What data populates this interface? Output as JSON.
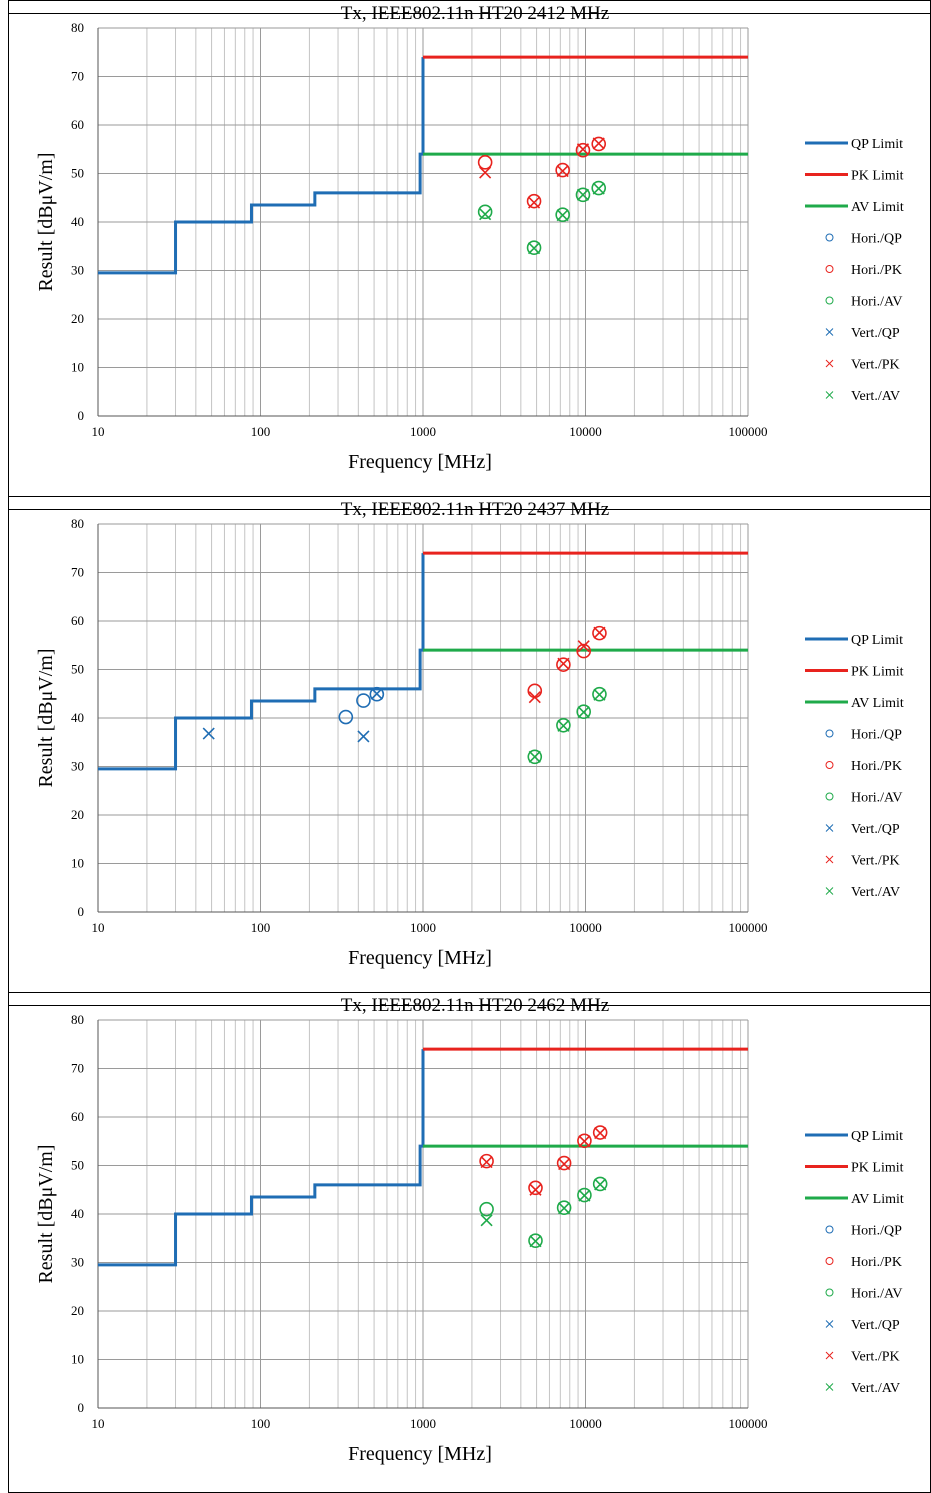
{
  "chart_data": [
    {
      "type": "line",
      "title": "Tx, IEEE802.11n HT20 2412 MHz",
      "xlabel": "Frequency [MHz]",
      "ylabel": "Result [dBμV/m]",
      "xscale": "log",
      "xlim": [
        10,
        100000
      ],
      "ylim": [
        0,
        80
      ],
      "xticks": [
        "10",
        "100",
        "1000",
        "10000",
        "100000"
      ],
      "yticks": [
        "0",
        "10",
        "20",
        "30",
        "40",
        "50",
        "60",
        "70",
        "80"
      ],
      "grid": true,
      "legend_position": "right",
      "series": [
        {
          "name": "QP Limit",
          "kind": "line",
          "color": "#1f6db4",
          "points": [
            [
              10,
              29.5
            ],
            [
              30,
              29.5
            ],
            [
              30,
              40
            ],
            [
              88,
              40
            ],
            [
              88,
              43.5
            ],
            [
              216,
              43.5
            ],
            [
              216,
              46
            ],
            [
              960,
              46
            ],
            [
              960,
              54
            ],
            [
              1000,
              54
            ],
            [
              1000,
              74
            ]
          ]
        },
        {
          "name": "PK Limit",
          "kind": "line",
          "color": "#e8231e",
          "points": [
            [
              1000,
              74
            ],
            [
              100000,
              74
            ]
          ]
        },
        {
          "name": "AV Limit",
          "kind": "line",
          "color": "#1faa4a",
          "points": [
            [
              1000,
              54
            ],
            [
              100000,
              54
            ]
          ]
        },
        {
          "name": "Hori./QP",
          "kind": "circle",
          "color": "#1f6db4",
          "points": []
        },
        {
          "name": "Hori./PK",
          "kind": "circle",
          "color": "#e8231e",
          "points": [
            [
              2412,
              52.3
            ],
            [
              4824,
              44.3
            ],
            [
              7236,
              50.7
            ],
            [
              9648,
              54.8
            ],
            [
              12060,
              56.1
            ]
          ]
        },
        {
          "name": "Hori./AV",
          "kind": "circle",
          "color": "#1faa4a",
          "points": [
            [
              2412,
              42.1
            ],
            [
              4824,
              34.7
            ],
            [
              7236,
              41.5
            ],
            [
              9648,
              45.6
            ],
            [
              12060,
              47.0
            ]
          ]
        },
        {
          "name": "Vert./QP",
          "kind": "cross",
          "color": "#1f6db4",
          "points": []
        },
        {
          "name": "Vert./PK",
          "kind": "cross",
          "color": "#e8231e",
          "points": [
            [
              2412,
              50.2
            ],
            [
              4824,
              44.0
            ],
            [
              7236,
              50.5
            ],
            [
              9648,
              55.0
            ],
            [
              12060,
              56.2
            ]
          ]
        },
        {
          "name": "Vert./AV",
          "kind": "cross",
          "color": "#1faa4a",
          "points": [
            [
              2412,
              41.6
            ],
            [
              4824,
              34.6
            ],
            [
              7236,
              41.4
            ],
            [
              9648,
              45.6
            ],
            [
              12060,
              46.9
            ]
          ]
        }
      ]
    },
    {
      "type": "line",
      "title": "Tx, IEEE802.11n HT20 2437 MHz",
      "xlabel": "Frequency [MHz]",
      "ylabel": "Result [dBμV/m]",
      "xscale": "log",
      "xlim": [
        10,
        100000
      ],
      "ylim": [
        0,
        80
      ],
      "xticks": [
        "10",
        "100",
        "1000",
        "10000",
        "100000"
      ],
      "yticks": [
        "0",
        "10",
        "20",
        "30",
        "40",
        "50",
        "60",
        "70",
        "80"
      ],
      "grid": true,
      "legend_position": "right",
      "series": [
        {
          "name": "QP Limit",
          "kind": "line",
          "color": "#1f6db4",
          "points": [
            [
              10,
              29.5
            ],
            [
              30,
              29.5
            ],
            [
              30,
              40
            ],
            [
              88,
              40
            ],
            [
              88,
              43.5
            ],
            [
              216,
              43.5
            ],
            [
              216,
              46
            ],
            [
              960,
              46
            ],
            [
              960,
              54
            ],
            [
              1000,
              54
            ],
            [
              1000,
              74
            ]
          ]
        },
        {
          "name": "PK Limit",
          "kind": "line",
          "color": "#e8231e",
          "points": [
            [
              1000,
              74
            ],
            [
              100000,
              74
            ]
          ]
        },
        {
          "name": "AV Limit",
          "kind": "line",
          "color": "#1faa4a",
          "points": [
            [
              1000,
              54
            ],
            [
              100000,
              54
            ]
          ]
        },
        {
          "name": "Hori./QP",
          "kind": "circle",
          "color": "#1f6db4",
          "points": [
            [
              335,
              40.2
            ],
            [
              430,
              43.6
            ],
            [
              520,
              44.9
            ]
          ]
        },
        {
          "name": "Hori./PK",
          "kind": "circle",
          "color": "#e8231e",
          "points": [
            [
              4874,
              45.6
            ],
            [
              7311,
              51.0
            ],
            [
              9748,
              53.8
            ],
            [
              12185,
              57.5
            ]
          ]
        },
        {
          "name": "Hori./AV",
          "kind": "circle",
          "color": "#1faa4a",
          "points": [
            [
              4874,
              32.0
            ],
            [
              7311,
              38.5
            ],
            [
              9748,
              41.3
            ],
            [
              12185,
              44.9
            ]
          ]
        },
        {
          "name": "Vert./QP",
          "kind": "cross",
          "color": "#1f6db4",
          "points": [
            [
              48,
              36.8
            ],
            [
              430,
              36.2
            ],
            [
              520,
              45.0
            ]
          ]
        },
        {
          "name": "Vert./PK",
          "kind": "cross",
          "color": "#e8231e",
          "points": [
            [
              4874,
              44.3
            ],
            [
              7311,
              51.2
            ],
            [
              9748,
              54.8
            ],
            [
              12185,
              57.6
            ]
          ]
        },
        {
          "name": "Vert./AV",
          "kind": "cross",
          "color": "#1faa4a",
          "points": [
            [
              4874,
              32.0
            ],
            [
              7311,
              38.4
            ],
            [
              9748,
              41.2
            ],
            [
              12185,
              44.8
            ]
          ]
        }
      ]
    },
    {
      "type": "line",
      "title": "Tx, IEEE802.11n HT20 2462 MHz",
      "xlabel": "Frequency [MHz]",
      "ylabel": "Result [dBμV/m]",
      "xscale": "log",
      "xlim": [
        10,
        100000
      ],
      "ylim": [
        0,
        80
      ],
      "xticks": [
        "10",
        "100",
        "1000",
        "10000",
        "100000"
      ],
      "yticks": [
        "0",
        "10",
        "20",
        "30",
        "40",
        "50",
        "60",
        "70",
        "80"
      ],
      "grid": true,
      "legend_position": "right",
      "series": [
        {
          "name": "QP Limit",
          "kind": "line",
          "color": "#1f6db4",
          "points": [
            [
              10,
              29.5
            ],
            [
              30,
              29.5
            ],
            [
              30,
              40
            ],
            [
              88,
              40
            ],
            [
              88,
              43.5
            ],
            [
              216,
              43.5
            ],
            [
              216,
              46
            ],
            [
              960,
              46
            ],
            [
              960,
              54
            ],
            [
              1000,
              54
            ],
            [
              1000,
              74
            ]
          ]
        },
        {
          "name": "PK Limit",
          "kind": "line",
          "color": "#e8231e",
          "points": [
            [
              1000,
              74
            ],
            [
              100000,
              74
            ]
          ]
        },
        {
          "name": "AV Limit",
          "kind": "line",
          "color": "#1faa4a",
          "points": [
            [
              1000,
              54
            ],
            [
              100000,
              54
            ]
          ]
        },
        {
          "name": "Hori./QP",
          "kind": "circle",
          "color": "#1f6db4",
          "points": []
        },
        {
          "name": "Hori./PK",
          "kind": "circle",
          "color": "#e8231e",
          "points": [
            [
              2462,
              50.9
            ],
            [
              4924,
              45.4
            ],
            [
              7386,
              50.5
            ],
            [
              9848,
              55.1
            ],
            [
              12310,
              56.8
            ]
          ]
        },
        {
          "name": "Hori./AV",
          "kind": "circle",
          "color": "#1faa4a",
          "points": [
            [
              2462,
              41.0
            ],
            [
              4924,
              34.5
            ],
            [
              7386,
              41.3
            ],
            [
              9848,
              43.9
            ],
            [
              12310,
              46.2
            ]
          ]
        },
        {
          "name": "Vert./QP",
          "kind": "cross",
          "color": "#1f6db4",
          "points": []
        },
        {
          "name": "Vert./PK",
          "kind": "cross",
          "color": "#e8231e",
          "points": [
            [
              2462,
              50.7
            ],
            [
              4924,
              45.0
            ],
            [
              7386,
              50.3
            ],
            [
              9848,
              55.0
            ],
            [
              12310,
              56.7
            ]
          ]
        },
        {
          "name": "Vert./AV",
          "kind": "cross",
          "color": "#1faa4a",
          "points": [
            [
              2462,
              38.7
            ],
            [
              4924,
              34.4
            ],
            [
              7386,
              41.2
            ],
            [
              9848,
              43.8
            ],
            [
              12310,
              46.1
            ]
          ]
        }
      ]
    }
  ]
}
